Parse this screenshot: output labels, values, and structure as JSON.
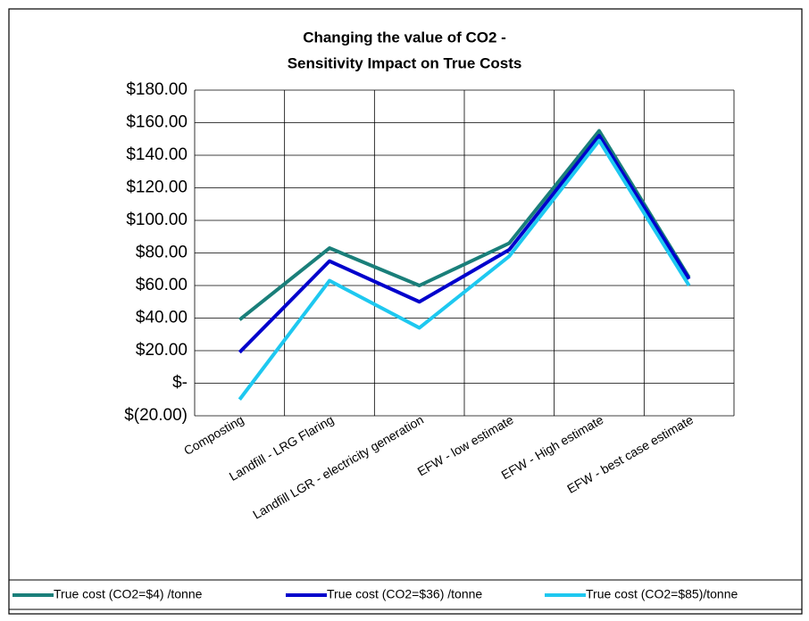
{
  "chart_data": {
    "type": "line",
    "title": [
      "Changing the value of CO2 -",
      "Sensitivity Impact on True Costs"
    ],
    "categories": [
      "Composting",
      "Landfill - LRG Flaring",
      "Landfill LGR - electricity generation",
      "EFW - low estimate",
      "EFW - High estimate",
      "EFW - best case estimate"
    ],
    "series": [
      {
        "name": "True cost (CO2=$4) /tonne",
        "color": "#1a7f7a",
        "values": [
          39,
          83,
          60,
          86,
          155,
          65
        ]
      },
      {
        "name": "True cost (CO2=$36) /tonne",
        "color": "#0000cc",
        "values": [
          19,
          75,
          50,
          82,
          152,
          64
        ]
      },
      {
        "name": "True cost (CO2=$85)/tonne",
        "color": "#1ec8f0",
        "values": [
          -10,
          63,
          34,
          78,
          149,
          60
        ]
      }
    ],
    "ylim": [
      -20,
      180
    ],
    "yticks": [
      {
        "value": -20,
        "label": "$(20.00)"
      },
      {
        "value": 0,
        "label": "$-"
      },
      {
        "value": 20,
        "label": "$20.00"
      },
      {
        "value": 40,
        "label": "$40.00"
      },
      {
        "value": 60,
        "label": "$60.00"
      },
      {
        "value": 80,
        "label": "$80.00"
      },
      {
        "value": 100,
        "label": "$100.00"
      },
      {
        "value": 120,
        "label": "$120.00"
      },
      {
        "value": 140,
        "label": "$140.00"
      },
      {
        "value": 160,
        "label": "$160.00"
      },
      {
        "value": 180,
        "label": "$180.00"
      }
    ],
    "grid": true,
    "legend": "bottom"
  }
}
